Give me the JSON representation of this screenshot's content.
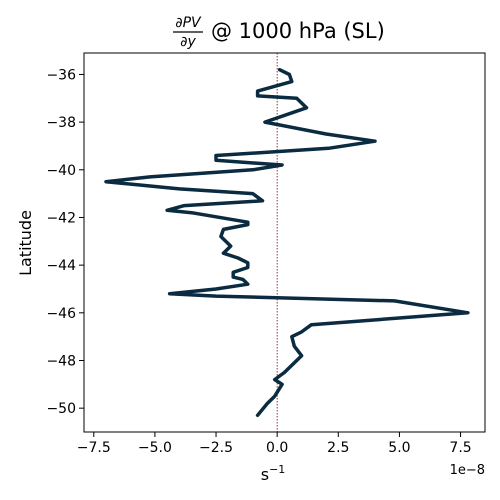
{
  "chart_data": {
    "type": "line",
    "title": {
      "frac_numerator": "∂PV",
      "frac_denominator": "∂y",
      "rest": "@ 1000 hPa (SL)"
    },
    "xlabel": "s",
    "xlabel_superscript": "−1",
    "ylabel": "Latitude",
    "x_offset_label": "1e−8",
    "x_scale": 1e-08,
    "xlim": [
      -7.9,
      8.5
    ],
    "ylim": [
      -51.0,
      -35.1
    ],
    "x_ticks": [
      -7.5,
      -5.0,
      -2.5,
      0.0,
      2.5,
      5.0,
      7.5
    ],
    "x_tick_labels": [
      "−7.5",
      "−5.0",
      "−2.5",
      "0.0",
      "2.5",
      "5.0",
      "7.5"
    ],
    "y_ticks": [
      -36,
      -38,
      -40,
      -42,
      -44,
      -46,
      -48,
      -50
    ],
    "y_tick_labels": [
      "−36",
      "−38",
      "−40",
      "−42",
      "−44",
      "−46",
      "−48",
      "−50"
    ],
    "reference_line": {
      "x": 0.0,
      "color": "#8b1a1a",
      "style": "dotted"
    },
    "line_color": "#0b2b40",
    "series": [
      {
        "x": [
          0.1,
          0.5,
          0.6,
          -0.8,
          -0.8,
          0.8,
          1.2,
          -0.5,
          2.0,
          4.0,
          2.1,
          -2.5,
          -2.5,
          0.2,
          -1.0,
          -5.2,
          -7.0,
          -4.0,
          -1.0,
          -0.6,
          -3.8,
          -4.5,
          -3.5,
          -1.2,
          -1.2,
          -2.2,
          -2.3,
          -1.9,
          -2.2,
          -1.6,
          -1.2,
          -1.2,
          -1.8,
          -1.8,
          -1.4,
          -1.2,
          -2.5,
          -4.4,
          -2.5,
          4.8,
          7.8,
          1.4,
          1.0,
          0.6,
          0.7,
          1.0,
          0.6,
          0.3,
          -0.1,
          0.2,
          -0.1,
          -0.4,
          -0.8
        ],
        "y": [
          -35.8,
          -36.0,
          -36.3,
          -36.7,
          -36.9,
          -37.0,
          -37.4,
          -38.0,
          -38.5,
          -38.8,
          -39.1,
          -39.4,
          -39.6,
          -39.8,
          -40.0,
          -40.3,
          -40.5,
          -40.8,
          -41.0,
          -41.3,
          -41.5,
          -41.7,
          -41.8,
          -42.2,
          -42.3,
          -42.5,
          -42.8,
          -43.2,
          -43.5,
          -43.7,
          -43.9,
          -44.1,
          -44.3,
          -44.5,
          -44.6,
          -44.8,
          -45.0,
          -45.2,
          -45.3,
          -45.5,
          -46.0,
          -46.5,
          -46.8,
          -47.0,
          -47.4,
          -47.8,
          -48.2,
          -48.5,
          -48.8,
          -49.0,
          -49.5,
          -49.8,
          -50.3
        ]
      }
    ]
  }
}
